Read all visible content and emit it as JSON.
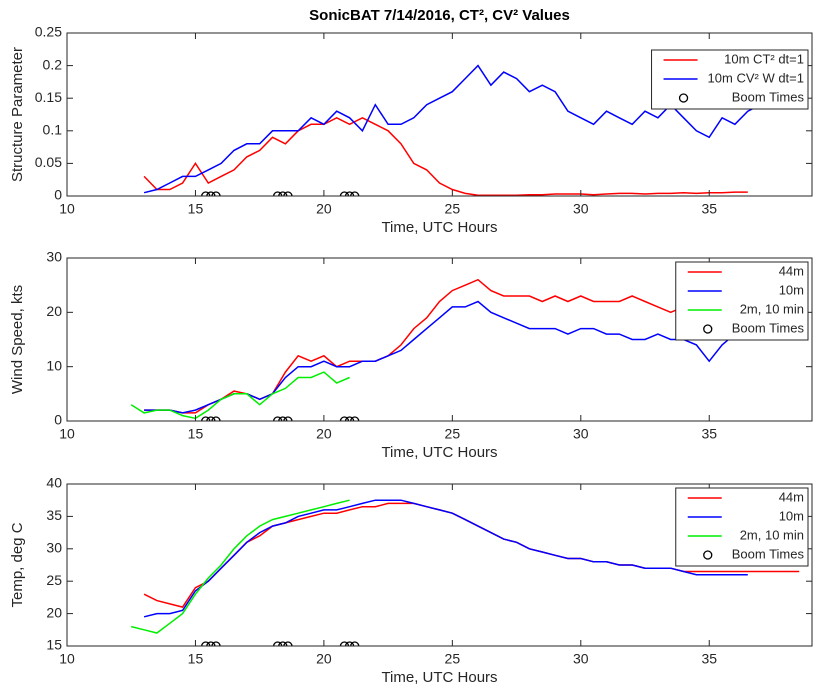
{
  "chart_data": [
    {
      "type": "line",
      "title": "SonicBAT 7/14/2016, CT², CV² Values",
      "xlabel": "Time, UTC Hours",
      "ylabel": "Structure Parameter",
      "xlim": [
        10,
        39
      ],
      "xticks": [
        10,
        15,
        20,
        25,
        30,
        35
      ],
      "ylim": [
        0,
        0.25
      ],
      "yticks": [
        0,
        0.05,
        0.1,
        0.15,
        0.2,
        0.25
      ],
      "legend": "northeast",
      "x": [
        12.5,
        13,
        13.5,
        14,
        14.5,
        15,
        15.5,
        16,
        16.5,
        17,
        17.5,
        18,
        18.5,
        19,
        19.5,
        20,
        20.5,
        21,
        21.5,
        22,
        22.5,
        23,
        23.5,
        24,
        24.5,
        25,
        25.5,
        26,
        26.5,
        27,
        27.5,
        28,
        28.5,
        29,
        29.5,
        30,
        30.5,
        31,
        31.5,
        32,
        32.5,
        33,
        33.5,
        34,
        34.5,
        35,
        35.5,
        36,
        36.5,
        37,
        37.5,
        38,
        38.5
      ],
      "series": [
        {
          "name": "10m CT² dt=1",
          "color": "#ff0000",
          "values": [
            null,
            0.03,
            0.01,
            0.01,
            0.02,
            0.05,
            0.02,
            0.03,
            0.04,
            0.06,
            0.07,
            0.09,
            0.08,
            0.1,
            0.11,
            0.11,
            0.12,
            0.11,
            0.12,
            0.11,
            0.1,
            0.08,
            0.05,
            0.04,
            0.02,
            0.01,
            0.004,
            0.001,
            0.001,
            0.001,
            0.001,
            0.002,
            0.002,
            0.003,
            0.003,
            0.003,
            0.002,
            0.003,
            0.004,
            0.004,
            0.003,
            0.004,
            0.004,
            0.005,
            0.004,
            0.005,
            0.005,
            0.006,
            0.006,
            null,
            null,
            null,
            null
          ]
        },
        {
          "name": "10m CV² W dt=1",
          "color": "#0000ff",
          "values": [
            null,
            0.005,
            0.01,
            0.02,
            0.03,
            0.03,
            0.04,
            0.05,
            0.07,
            0.08,
            0.08,
            0.1,
            0.1,
            0.1,
            0.12,
            0.11,
            0.13,
            0.12,
            0.1,
            0.14,
            0.11,
            0.11,
            0.12,
            0.14,
            0.15,
            0.16,
            0.18,
            0.2,
            0.17,
            0.19,
            0.18,
            0.16,
            0.17,
            0.16,
            0.13,
            0.12,
            0.11,
            0.13,
            0.12,
            0.11,
            0.13,
            0.12,
            0.14,
            0.12,
            0.1,
            0.09,
            0.12,
            0.11,
            0.13,
            0.14,
            null,
            null,
            null
          ]
        },
        {
          "name": "Boom Times",
          "color": "#000000",
          "marker": "o",
          "linestyle": "none",
          "x": [
            15.4,
            15.6,
            15.8,
            18.2,
            18.4,
            18.6,
            20.8,
            21.0,
            21.2
          ],
          "values": [
            0,
            0,
            0,
            0,
            0,
            0,
            0,
            0,
            0
          ]
        }
      ]
    },
    {
      "type": "line",
      "xlabel": "Time, UTC Hours",
      "ylabel": "Wind Speed, kts",
      "xlim": [
        10,
        39
      ],
      "xticks": [
        10,
        15,
        20,
        25,
        30,
        35
      ],
      "ylim": [
        0,
        30
      ],
      "yticks": [
        0,
        10,
        20,
        30
      ],
      "legend": "northeast",
      "x": [
        12.5,
        13,
        13.5,
        14,
        14.5,
        15,
        15.5,
        16,
        16.5,
        17,
        17.5,
        18,
        18.5,
        19,
        19.5,
        20,
        20.5,
        21,
        21.5,
        22,
        22.5,
        23,
        23.5,
        24,
        24.5,
        25,
        25.5,
        26,
        26.5,
        27,
        27.5,
        28,
        28.5,
        29,
        29.5,
        30,
        30.5,
        31,
        31.5,
        32,
        32.5,
        33,
        33.5,
        34,
        34.5,
        35,
        35.5,
        36,
        36.5,
        37,
        37.5,
        38,
        38.5
      ],
      "series": [
        {
          "name": "44m",
          "color": "#ff0000",
          "values": [
            null,
            2,
            2,
            2,
            1.5,
            1.5,
            3,
            4,
            5.5,
            5,
            4,
            5,
            9,
            12,
            11,
            12,
            10,
            11,
            11,
            11,
            12,
            14,
            17,
            19,
            22,
            24,
            25,
            26,
            24,
            23,
            23,
            23,
            22,
            23,
            22,
            23,
            22,
            22,
            22,
            23,
            22,
            21,
            20,
            21,
            20,
            20,
            21,
            20,
            null,
            null,
            null,
            null,
            null
          ]
        },
        {
          "name": "10m",
          "color": "#0000ff",
          "values": [
            null,
            2,
            2,
            2,
            1.5,
            2,
            3,
            4,
            5,
            5,
            4,
            5,
            8,
            10,
            10,
            11,
            10,
            10,
            11,
            11,
            12,
            13,
            15,
            17,
            19,
            21,
            21,
            22,
            20,
            19,
            18,
            17,
            17,
            17,
            16,
            17,
            17,
            16,
            16,
            15,
            15,
            16,
            15,
            15,
            14,
            11,
            14,
            16,
            null,
            null,
            null,
            null,
            null
          ]
        },
        {
          "name": "2m, 10 min",
          "color": "#00ee00",
          "values": [
            3,
            1.5,
            2,
            2,
            1,
            0.5,
            2,
            4,
            5,
            5,
            3,
            5,
            6,
            8,
            8,
            9,
            7,
            8,
            null,
            null,
            null,
            null,
            null,
            null,
            null,
            null,
            null,
            null,
            null,
            null,
            null,
            null,
            null,
            null,
            null,
            null,
            null,
            null,
            null,
            null,
            null,
            null,
            null,
            null,
            null,
            null,
            null,
            null,
            null,
            null,
            null,
            null,
            null
          ]
        },
        {
          "name": "Boom Times",
          "color": "#000000",
          "marker": "o",
          "linestyle": "none",
          "x": [
            15.4,
            15.6,
            15.8,
            18.2,
            18.4,
            18.6,
            20.8,
            21.0,
            21.2
          ],
          "values": [
            0,
            0,
            0,
            0,
            0,
            0,
            0,
            0,
            0
          ]
        }
      ]
    },
    {
      "type": "line",
      "xlabel": "Time, UTC Hours",
      "ylabel": "Temp, deg C",
      "xlim": [
        10,
        39
      ],
      "xticks": [
        10,
        15,
        20,
        25,
        30,
        35
      ],
      "ylim": [
        15,
        40
      ],
      "yticks": [
        15,
        20,
        25,
        30,
        35,
        40
      ],
      "legend": "northeast",
      "x": [
        12.5,
        13,
        13.5,
        14,
        14.5,
        15,
        15.5,
        16,
        16.5,
        17,
        17.5,
        18,
        18.5,
        19,
        19.5,
        20,
        20.5,
        21,
        21.5,
        22,
        22.5,
        23,
        23.5,
        24,
        24.5,
        25,
        25.5,
        26,
        26.5,
        27,
        27.5,
        28,
        28.5,
        29,
        29.5,
        30,
        30.5,
        31,
        31.5,
        32,
        32.5,
        33,
        33.5,
        34,
        34.5,
        35,
        35.5,
        36,
        36.5,
        37,
        37.5,
        38,
        38.5
      ],
      "series": [
        {
          "name": "44m",
          "color": "#ff0000",
          "values": [
            null,
            23,
            22,
            21.5,
            21,
            24,
            25,
            27,
            29,
            31,
            32,
            33.5,
            34,
            34.5,
            35,
            35.5,
            35.5,
            36,
            36.5,
            36.5,
            37,
            37,
            37,
            36.5,
            36,
            35.5,
            34.5,
            33.5,
            32.5,
            31.5,
            31,
            30,
            29.5,
            29,
            28.5,
            28.5,
            28,
            28,
            27.5,
            27.5,
            27,
            27,
            27,
            26.5,
            26.5,
            26.5,
            26.5,
            26.5,
            26.5,
            26.5,
            26.5,
            26.5,
            26.5
          ]
        },
        {
          "name": "10m",
          "color": "#0000ff",
          "values": [
            null,
            19.5,
            20,
            20,
            20.5,
            23.5,
            25,
            27,
            29,
            31,
            32.5,
            33.5,
            34,
            35,
            35.5,
            36,
            36,
            36.5,
            37,
            37.5,
            37.5,
            37.5,
            37,
            36.5,
            36,
            35.5,
            34.5,
            33.5,
            32.5,
            31.5,
            31,
            30,
            29.5,
            29,
            28.5,
            28.5,
            28,
            28,
            27.5,
            27.5,
            27,
            27,
            27,
            26.5,
            26,
            26,
            26,
            26,
            26,
            null,
            null,
            null,
            null
          ]
        },
        {
          "name": "2m, 10 min",
          "color": "#00ee00",
          "values": [
            18,
            17.5,
            17,
            18.5,
            20,
            23,
            25.5,
            27.5,
            30,
            32,
            33.5,
            34.5,
            35,
            35.5,
            36,
            36.5,
            37,
            37.5,
            null,
            null,
            null,
            null,
            null,
            null,
            null,
            null,
            null,
            null,
            null,
            null,
            null,
            null,
            null,
            null,
            null,
            null,
            null,
            null,
            null,
            null,
            null,
            null,
            null,
            null,
            null,
            null,
            null,
            null,
            null,
            null,
            null,
            null,
            null
          ]
        },
        {
          "name": "Boom Times",
          "color": "#000000",
          "marker": "o",
          "linestyle": "none",
          "x": [
            15.4,
            15.6,
            15.8,
            18.2,
            18.4,
            18.6,
            20.8,
            21.0,
            21.2
          ],
          "values": [
            15,
            15,
            15,
            15,
            15,
            15,
            15,
            15,
            15
          ]
        }
      ]
    }
  ]
}
